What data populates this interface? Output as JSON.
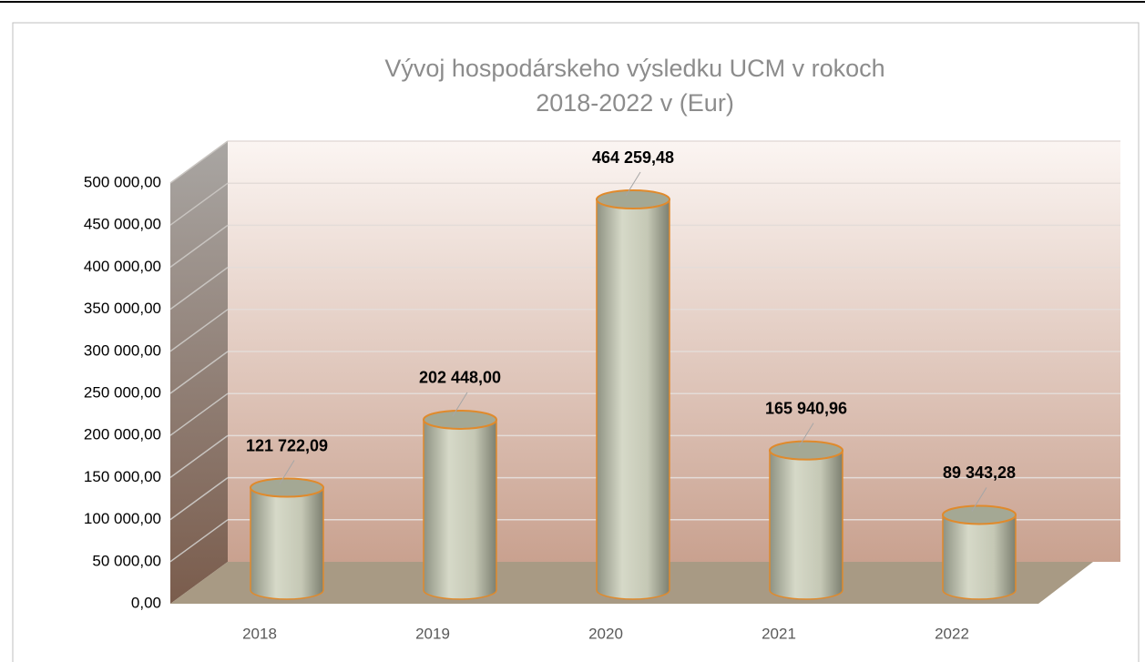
{
  "chart_data": {
    "type": "cylinder",
    "title": [
      "Vývoj hospodárskeho výsledku UCM v rokoch",
      "2018-2022 v (Eur)"
    ],
    "categories": [
      "2018",
      "2019",
      "2020",
      "2021",
      "2022"
    ],
    "values": [
      121722.09,
      202448.0,
      464259.48,
      165940.96,
      89343.28
    ],
    "value_labels": [
      "121 722,09",
      "202 448,00",
      "464 259,48",
      "165 940,96",
      "89 343,28"
    ],
    "color": "#c8cbb8",
    "ylim": [
      0,
      500000
    ],
    "yticks": [
      {
        "value": 0,
        "label": "0,00"
      },
      {
        "value": 50000,
        "label": "50 000,00"
      },
      {
        "value": 100000,
        "label": "100 000,00"
      },
      {
        "value": 150000,
        "label": "150 000,00"
      },
      {
        "value": 200000,
        "label": "200 000,00"
      },
      {
        "value": 250000,
        "label": "250 000,00"
      },
      {
        "value": 300000,
        "label": "300 000,00"
      },
      {
        "value": 350000,
        "label": "350 000,00"
      },
      {
        "value": 400000,
        "label": "400 000,00"
      },
      {
        "value": 450000,
        "label": "450 000,00"
      },
      {
        "value": 500000,
        "label": "500 000,00"
      }
    ],
    "grid": true
  }
}
